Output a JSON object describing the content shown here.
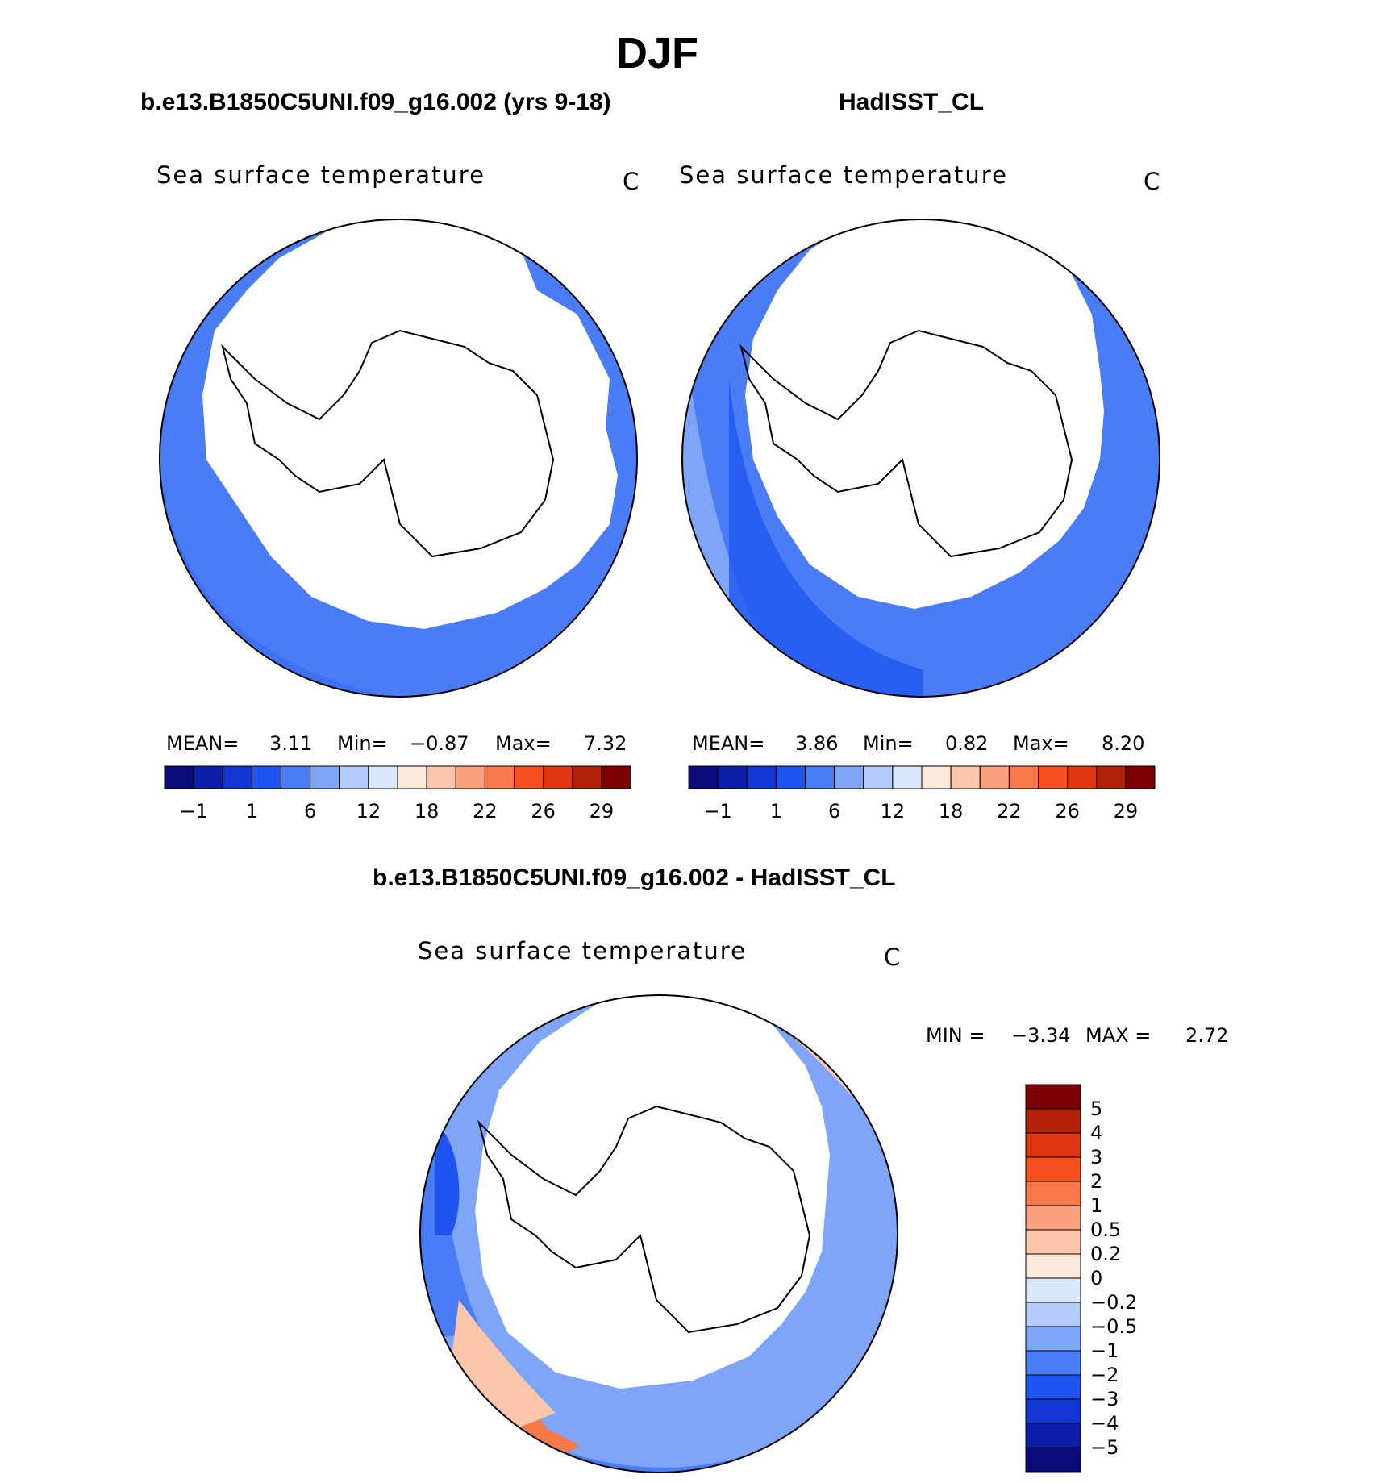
{
  "title": "DJF",
  "panels": {
    "left": {
      "case_title": "b.e13.B1850C5UNI.f09_g16.002 (yrs 9-18)",
      "label": "Sea surface temperature",
      "unit": "C",
      "mean_label": "MEAN=",
      "mean": "3.11",
      "min_label": "Min=",
      "min": "−0.87",
      "max_label": "Max=",
      "max": "7.32"
    },
    "right": {
      "case_title": "HadISST_CL",
      "label": "Sea surface temperature",
      "unit": "C",
      "mean_label": "MEAN=",
      "mean": "3.86",
      "min_label": "Min=",
      "min": "0.82",
      "max_label": "Max=",
      "max": "8.20"
    },
    "diff": {
      "case_title": "b.e13.B1850C5UNI.f09_g16.002 - HadISST_CL",
      "label": "Sea surface temperature",
      "unit": "C",
      "min_label": "MIN =",
      "min": "−3.34",
      "max_label": "MAX =",
      "max": "2.72"
    }
  },
  "colorbar_abs": {
    "colors": [
      "#0a0a7a",
      "#0c1fa8",
      "#1236d6",
      "#1e55f0",
      "#4a7df5",
      "#7ea5f7",
      "#b3cbfa",
      "#d9e8fb",
      "#fde9da",
      "#fbc6aa",
      "#f9a07c",
      "#f77848",
      "#f54f1e",
      "#e03610",
      "#b22208",
      "#7d0000"
    ],
    "ticks": [
      "−1",
      "1",
      "6",
      "12",
      "18",
      "22",
      "26",
      "29"
    ]
  },
  "colorbar_diff": {
    "colors": [
      "#7d0000",
      "#b22208",
      "#e03610",
      "#f54f1e",
      "#f77848",
      "#f9a07c",
      "#fbc6aa",
      "#fde9da",
      "#d9e8fb",
      "#b3cbfa",
      "#7ea5f7",
      "#4a7df5",
      "#1e55f0",
      "#1236d6",
      "#0c1fa8",
      "#0a0a7a"
    ],
    "ticks": [
      "5",
      "4",
      "3",
      "2",
      "1",
      "0.5",
      "0.2",
      "0",
      "−0.2",
      "−0.5",
      "−1",
      "−2",
      "−3",
      "−4",
      "−5"
    ]
  }
}
